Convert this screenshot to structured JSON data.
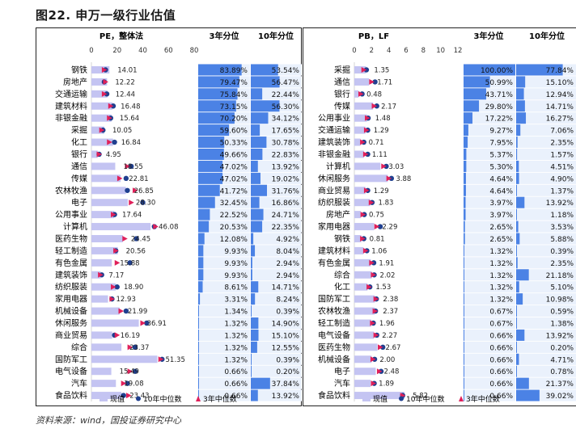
{
  "figure_title": "图22. 申万一级行业估值",
  "source": "资料来源：wind，国投证券研究中心",
  "colors": {
    "current_bar": "#c4c4f2",
    "median_10y": "#1f3f8f",
    "median_3y": "#e0205a",
    "pct_bar_dark": "#2f6fe0",
    "pct_bar_light": "#eaf1fc"
  },
  "legend": {
    "current": "现值",
    "median_10y": "10年中位数",
    "median_3y": "3年中位数"
  },
  "chart_data": [
    {
      "type": "bar",
      "name": "PE",
      "title": "PE，整体法",
      "col3_title": "3年分位",
      "col10_title": "10年分位",
      "xlim": [
        0,
        80
      ],
      "ticks": [
        0,
        20,
        40,
        60,
        80
      ],
      "categories": [
        "钢铁",
        "房地产",
        "交通运输",
        "建筑材料",
        "非银金融",
        "采掘",
        "化工",
        "银行",
        "通信",
        "传媒",
        "农林牧渔",
        "电子",
        "公用事业",
        "计算机",
        "医药生物",
        "轻工制造",
        "有色金属",
        "建筑装饰",
        "纺织服装",
        "家用电器",
        "机械设备",
        "休闲服务",
        "商业贸易",
        "综合",
        "国防军工",
        "电气设备",
        "汽车",
        "食品饮料"
      ],
      "labels": [
        "14.01",
        "12.22",
        "12.44",
        "16.48",
        "15.64",
        "10.05",
        "16.84",
        "4.95",
        "18.55",
        "22.81",
        "26.85",
        "28.30",
        "17.64",
        "46.08",
        "24.45",
        "20.56",
        "15.88",
        "7.17",
        "18.90",
        "12.93",
        "21.99",
        "36.91",
        "16.19",
        "23.37",
        "51.35",
        "15.49",
        "19.08",
        "23.43"
      ],
      "series": [
        {
          "name": "现值",
          "values": [
            14.01,
            12.22,
            12.44,
            16.48,
            15.64,
            10.05,
            16.84,
            4.95,
            18.55,
            22.81,
            26.85,
            28.3,
            17.64,
            46.08,
            24.45,
            20.56,
            15.88,
            7.17,
            18.9,
            12.93,
            21.99,
            36.91,
            16.19,
            23.37,
            51.35,
            15.49,
            19.08,
            23.43
          ]
        },
        {
          "name": "10年中位数",
          "values": [
            11,
            10,
            12,
            17,
            15,
            9,
            18,
            6,
            31,
            27,
            28,
            40,
            18,
            49,
            35,
            19,
            30,
            8,
            20,
            16,
            27,
            43,
            18,
            34,
            55,
            34,
            28,
            25
          ]
        },
        {
          "name": "3年中位数",
          "values": [
            10,
            11,
            10,
            15,
            14,
            8,
            14,
            6,
            28,
            22,
            34,
            31,
            17,
            50,
            26,
            19,
            20,
            7,
            17,
            16,
            23,
            40,
            20,
            30,
            54,
            30,
            25,
            29
          ]
        }
      ],
      "pct3": [
        "83.89%",
        "79.47%",
        "75.84%",
        "73.15%",
        "70.20%",
        "59.60%",
        "50.33%",
        "49.66%",
        "47.02%",
        "47.02%",
        "41.72%",
        "32.45%",
        "22.52%",
        "20.53%",
        "12.08%",
        "9.93%",
        "9.93%",
        "9.93%",
        "8.61%",
        "3.31%",
        "1.34%",
        "1.32%",
        "1.32%",
        "1.32%",
        "1.32%",
        "0.66%",
        "0.66%",
        "0.66%"
      ],
      "pct10": [
        "53.54%",
        "56.47%",
        "22.44%",
        "56.30%",
        "34.12%",
        "17.65%",
        "30.78%",
        "22.83%",
        "13.92%",
        "19.02%",
        "31.76%",
        "16.86%",
        "24.71%",
        "22.35%",
        "4.92%",
        "8.04%",
        "2.94%",
        "2.94%",
        "14.71%",
        "8.24%",
        "0.39%",
        "14.90%",
        "15.10%",
        "12.55%",
        "0.39%",
        "0.20%",
        "37.84%",
        "13.92%"
      ]
    },
    {
      "type": "bar",
      "name": "PB",
      "title": "PB，LF",
      "col3_title": "3年分位",
      "col10_title": "10年分位",
      "xlim": [
        0,
        12
      ],
      "ticks": [
        0,
        2,
        4,
        6,
        8,
        10,
        12
      ],
      "categories": [
        "采掘",
        "通信",
        "银行",
        "传媒",
        "公用事业",
        "交通运输",
        "建筑装饰",
        "非银金融",
        "计算机",
        "休闲服务",
        "商业贸易",
        "纺织服装",
        "房地产",
        "家用电器",
        "钢铁",
        "建筑材料",
        "有色金属",
        "综合",
        "化工",
        "国防军工",
        "农林牧渔",
        "轻工制造",
        "电气设备",
        "医药生物",
        "机械设备",
        "电子",
        "汽车",
        "食品饮料"
      ],
      "labels": [
        "1.35",
        "1.71",
        "0.48",
        "2.17",
        "1.48",
        "1.29",
        "0.71",
        "1.11",
        "3.03",
        "3.88",
        "1.29",
        "1.83",
        "0.75",
        "2.29",
        "0.81",
        "1.06",
        "1.91",
        "2.02",
        "1.53",
        "2.38",
        "2.37",
        "1.96",
        "2.27",
        "2.67",
        "2.00",
        "2.48",
        "1.89",
        "5.82"
      ],
      "series": [
        {
          "name": "现值",
          "values": [
            1.35,
            1.71,
            0.48,
            2.17,
            1.48,
            1.29,
            0.71,
            1.11,
            3.03,
            3.88,
            1.29,
            1.83,
            0.75,
            2.29,
            0.81,
            1.06,
            1.91,
            2.02,
            1.53,
            2.38,
            2.37,
            1.96,
            2.27,
            2.67,
            2.0,
            2.48,
            1.89,
            5.82
          ]
        },
        {
          "name": "10年中位数",
          "values": [
            1.4,
            2.4,
            0.9,
            2.6,
            1.6,
            1.55,
            1.1,
            1.55,
            3.7,
            4.3,
            1.55,
            2.05,
            1.15,
            3.0,
            1.1,
            1.45,
            2.25,
            2.3,
            1.8,
            2.55,
            2.45,
            2.2,
            2.6,
            3.3,
            2.35,
            3.1,
            2.3,
            5.6
          ]
        },
        {
          "name": "3年中位数",
          "values": [
            1.1,
            2.0,
            0.75,
            2.3,
            1.5,
            1.4,
            0.95,
            1.3,
            3.4,
            4.0,
            1.4,
            1.95,
            1.0,
            2.6,
            0.95,
            1.3,
            2.0,
            2.2,
            1.7,
            2.5,
            2.4,
            2.1,
            2.5,
            3.0,
            2.15,
            2.9,
            2.2,
            5.6
          ]
        }
      ],
      "pct3": [
        "100.00%",
        "50.99%",
        "43.71%",
        "29.80%",
        "17.22%",
        "9.27%",
        "7.95%",
        "5.37%",
        "5.30%",
        "4.64%",
        "4.64%",
        "3.97%",
        "3.97%",
        "2.65%",
        "2.65%",
        "1.32%",
        "1.32%",
        "1.32%",
        "1.32%",
        "1.32%",
        "0.67%",
        "0.67%",
        "0.66%",
        "0.66%",
        "0.66%",
        "0.66%",
        "0.66%",
        "0.66%"
      ],
      "pct10": [
        "77.84%",
        "15.10%",
        "12.94%",
        "14.71%",
        "16.27%",
        "7.06%",
        "2.35%",
        "1.57%",
        "4.51%",
        "4.90%",
        "1.37%",
        "13.92%",
        "1.18%",
        "3.53%",
        "5.88%",
        "0.39%",
        "2.35%",
        "21.18%",
        "5.10%",
        "10.98%",
        "0.59%",
        "1.38%",
        "13.92%",
        "0.20%",
        "4.71%",
        "0.78%",
        "21.37%",
        "39.02%"
      ]
    }
  ]
}
